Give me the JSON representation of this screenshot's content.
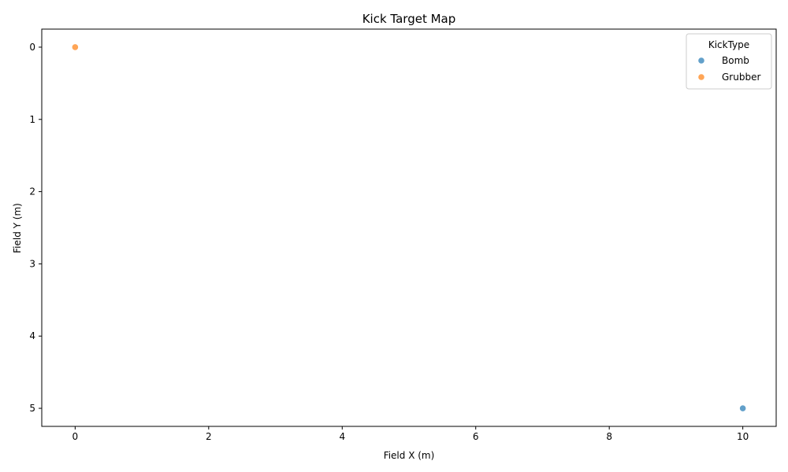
{
  "chart_data": {
    "type": "scatter",
    "title": "Kick Target Map",
    "xlabel": "Field X (m)",
    "ylabel": "Field Y (m)",
    "xlim": [
      -0.5,
      10.5
    ],
    "ylim": [
      5.25,
      -0.25
    ],
    "y_inverted": true,
    "xticks": [
      0,
      2,
      4,
      6,
      8,
      10
    ],
    "yticks": [
      0,
      1,
      2,
      3,
      4,
      5
    ],
    "grid": false,
    "legend": {
      "title": "KickType",
      "placement": "top-right"
    },
    "series": [
      {
        "name": "Bomb",
        "color": "#1f77b4",
        "points": [
          {
            "x": 10,
            "y": 5
          }
        ]
      },
      {
        "name": "Grubber",
        "color": "#ff7f0e",
        "points": [
          {
            "x": 0,
            "y": 0
          }
        ]
      }
    ]
  }
}
